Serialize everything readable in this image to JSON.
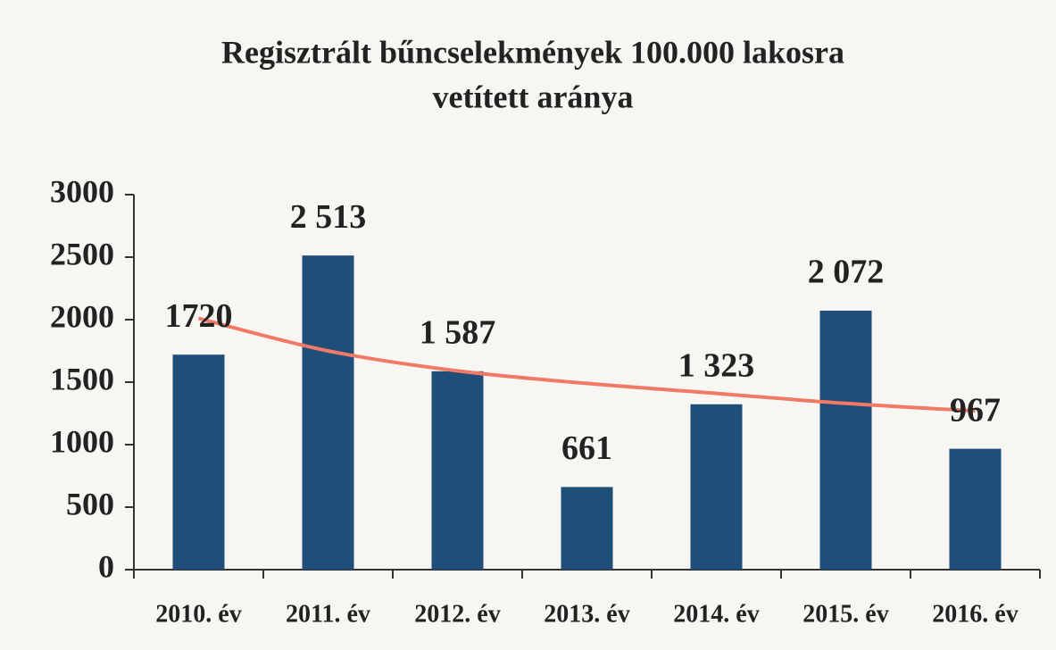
{
  "chart_data": {
    "type": "bar",
    "title": "Regisztrált bűncselekmények 100.000 lakosra",
    "subtitle": "vetített aránya",
    "categories": [
      "2010. év",
      "2011. év",
      "2012. év",
      "2013. év",
      "2014. év",
      "2015. év",
      "2016. év"
    ],
    "values": [
      1720,
      2513,
      1587,
      661,
      1323,
      2072,
      967
    ],
    "value_labels": [
      "1720",
      "2 513",
      "1 587",
      "661",
      "1 323",
      "2 072",
      "967"
    ],
    "color": "#1f4e79",
    "trendline": {
      "color": "#f07a66",
      "values": [
        2010,
        1750,
        1590,
        1490,
        1410,
        1330,
        1270
      ]
    },
    "ylim": [
      0,
      3000
    ],
    "yticks": [
      0,
      500,
      1000,
      1500,
      2000,
      2500,
      3000
    ]
  }
}
